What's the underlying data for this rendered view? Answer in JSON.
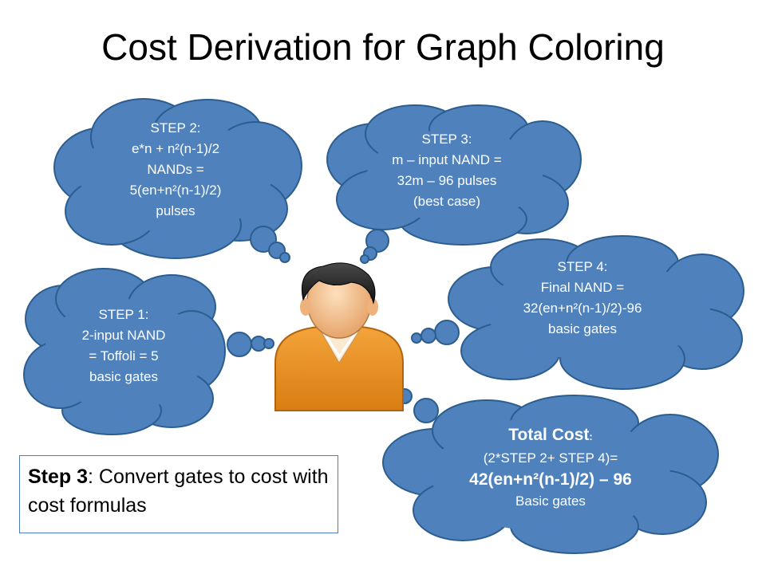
{
  "title": "Cost Derivation for Graph Coloring",
  "colors": {
    "cloud_fill": "#4f81bd",
    "cloud_stroke": "#2c5d8f",
    "shirt": "#e8901f",
    "hair": "#2a2a2a",
    "skin": "#f3c08e"
  },
  "clouds": {
    "step2": {
      "lines": [
        "STEP 2:",
        "e*n + n²(n-1)/2",
        "NANDs =",
        "5(en+n²(n-1)/2)",
        "pulses"
      ]
    },
    "step3": {
      "lines": [
        "STEP 3:",
        "m – input NAND =",
        "32m – 96 pulses",
        "(best case)"
      ]
    },
    "step1": {
      "lines": [
        "STEP 1:",
        "2-input NAND",
        "= Toffoli = 5",
        "basic gates"
      ]
    },
    "step4": {
      "lines": [
        "STEP 4:",
        "Final NAND =",
        "32(en+n²(n-1)/2)-96",
        "basic gates"
      ]
    },
    "total": {
      "heading": "Total Cost",
      "heading_colon": ":",
      "lines": [
        "(2*STEP 2+ STEP 4)=",
        "42(en+n²(n-1)/2) – 96",
        "Basic gates"
      ]
    }
  },
  "note": {
    "bold": "Step 3",
    "rest": ": Convert gates to cost with cost formulas"
  },
  "icons": {
    "person": "person-icon"
  }
}
